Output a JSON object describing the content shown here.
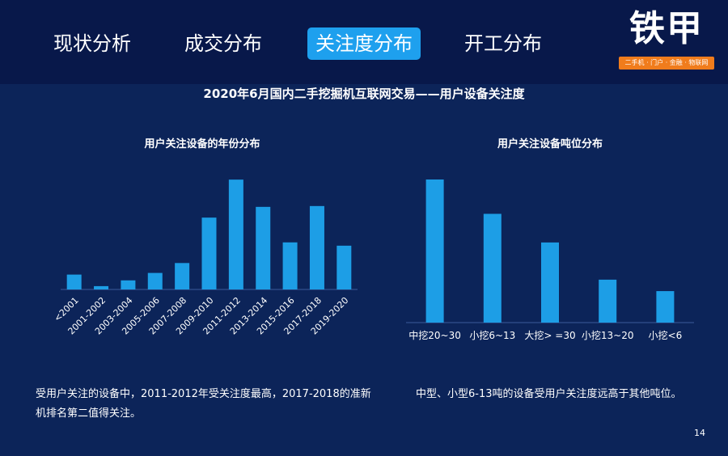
{
  "nav": {
    "tabs": [
      {
        "label": "现状分析"
      },
      {
        "label": "成交分布"
      },
      {
        "label": "关注度分布"
      },
      {
        "label": "开工分布"
      }
    ],
    "active_index": 2
  },
  "logo": {
    "text": "铁甲",
    "tagline": "二手机 · 门户 · 金融 · 物联网"
  },
  "main_title": "2020年6月国内二手挖掘机互联网交易——用户设备关注度",
  "left_note": "受用户关注的设备中，2011-2012年受关注度最高，2017-2018的准新机排名第二值得关注。",
  "right_note": "中型、小型6-13吨的设备受用户关注度远高于其他吨位。",
  "page_number": "14",
  "colors": {
    "background": "#0c2459",
    "header": "#08184a",
    "bar": "#1d9ee6",
    "active_tab": "#1ea0ee",
    "logo_tag": "#f07c1c"
  },
  "chart_data": [
    {
      "type": "bar",
      "title": "用户关注设备的年份分布",
      "categories": [
        "<2001",
        "2001-2002",
        "2003-2004",
        "2005-2006",
        "2007-2008",
        "2009-2010",
        "2011-2012",
        "2013-2014",
        "2015-2016",
        "2017-2018",
        "2019-2020"
      ],
      "values": [
        18,
        4,
        11,
        20,
        32,
        87,
        133,
        100,
        57,
        101,
        53
      ],
      "ylim": [
        0,
        140
      ],
      "grid": false,
      "legend": "none"
    },
    {
      "type": "bar",
      "title": "用户关注设备吨位分布",
      "categories": [
        "中挖20~30",
        "小挖6~13",
        "大挖> =30",
        "小挖13~20",
        "小挖<6"
      ],
      "values": [
        100,
        76,
        56,
        30,
        22
      ],
      "ylim": [
        0,
        100
      ],
      "grid": false,
      "legend": "none"
    }
  ]
}
